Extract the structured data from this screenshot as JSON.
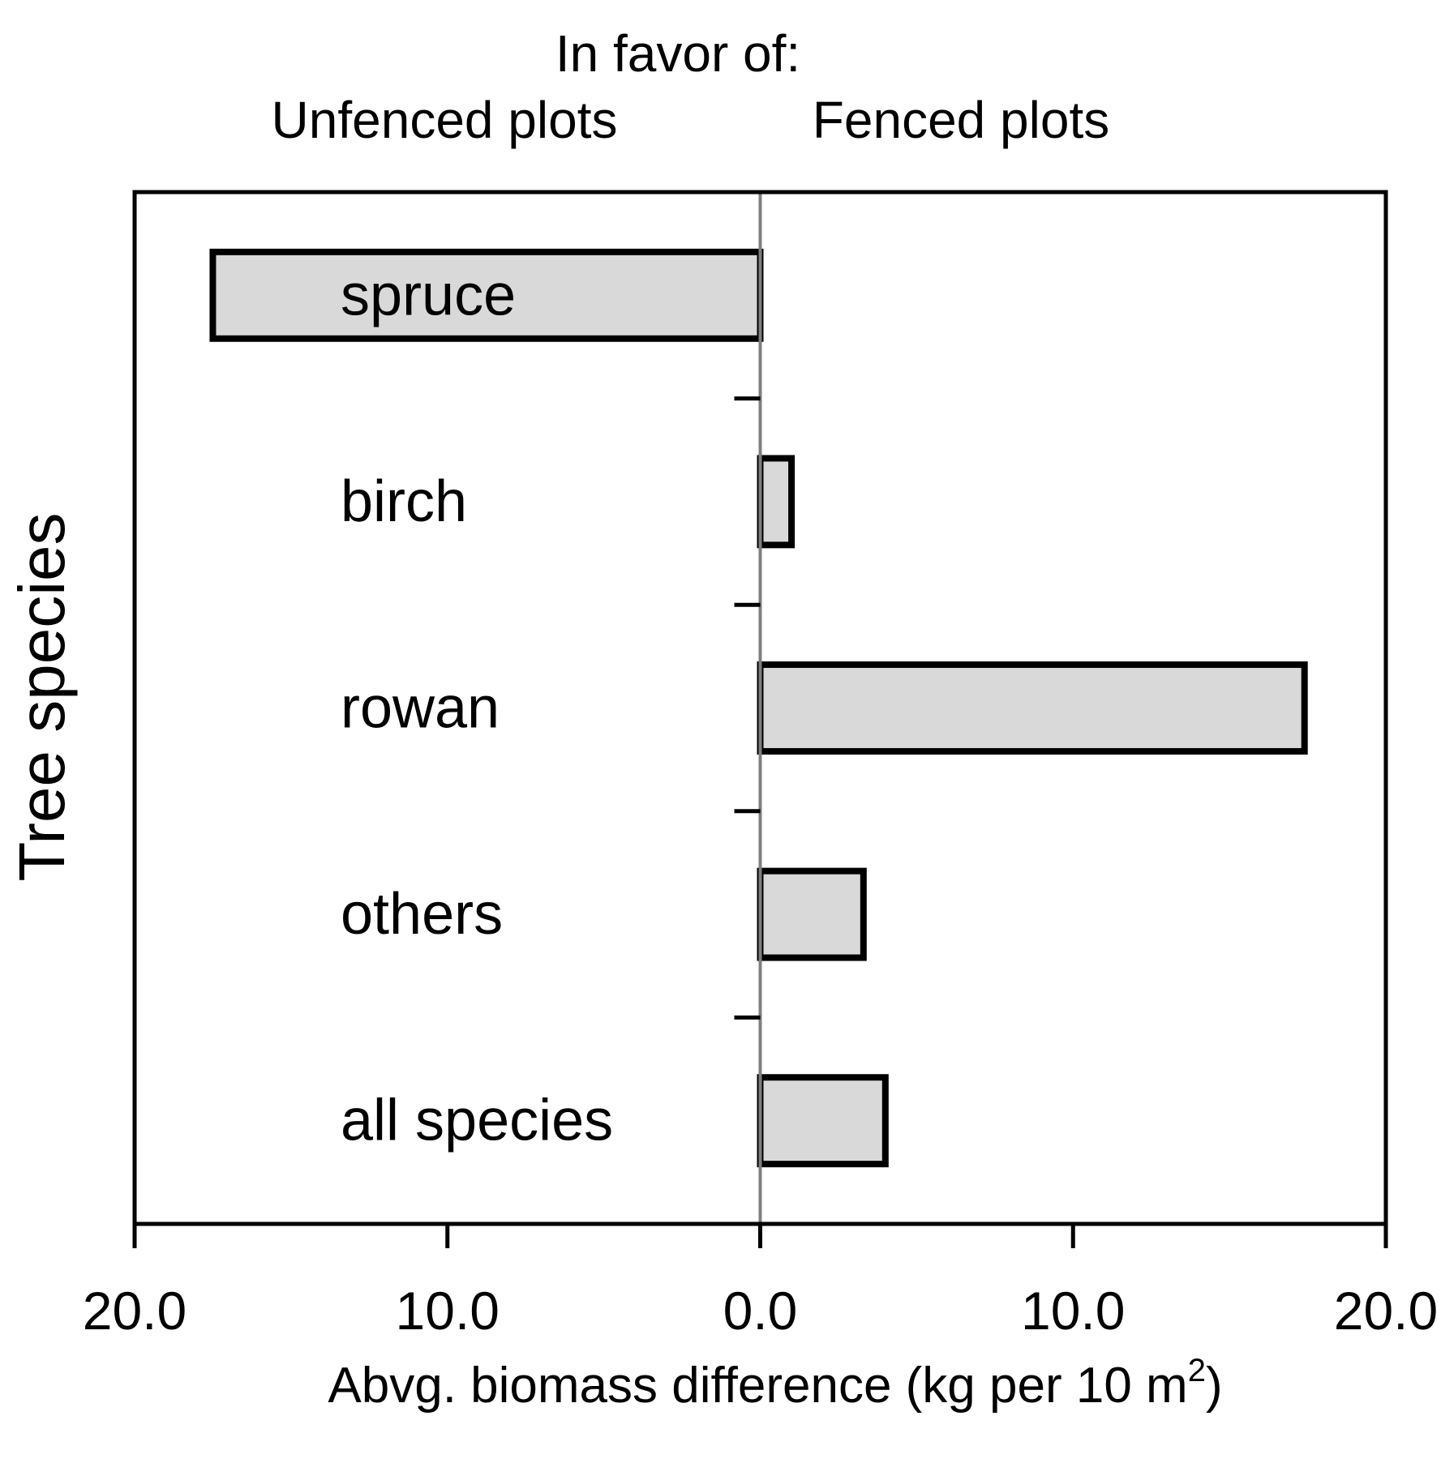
{
  "header": {
    "line1": "In favor of:",
    "left_label": "Unfenced plots",
    "right_label": "Fenced plots"
  },
  "axes": {
    "ylabel": "Tree species",
    "xlabel_main": "Abvg. biomass difference (kg per 10 m",
    "xlabel_sup": "2",
    "xlabel_close": ")",
    "x_ticks": [
      "20.0",
      "10.0",
      "0.0",
      "10.0",
      "20.0"
    ]
  },
  "colors": {
    "bar_fill": "#d9d9d9",
    "bar_stroke": "#000000",
    "zero_line": "#7f7f7f"
  },
  "chart_data": {
    "type": "bar",
    "orientation": "horizontal",
    "categories": [
      "spruce",
      "birch",
      "rowan",
      "others",
      "all species"
    ],
    "values": [
      -17.5,
      1.0,
      17.4,
      3.3,
      4.0
    ],
    "xlim": [
      -20,
      20
    ],
    "x_ticks": [
      -20,
      -10,
      0,
      10,
      20
    ],
    "x_tick_labels": [
      "20.0",
      "10.0",
      "0.0",
      "10.0",
      "20.0"
    ],
    "xlabel": "Abvg. biomass difference (kg per 10 m2)",
    "ylabel": "Tree species",
    "grid": false
  }
}
